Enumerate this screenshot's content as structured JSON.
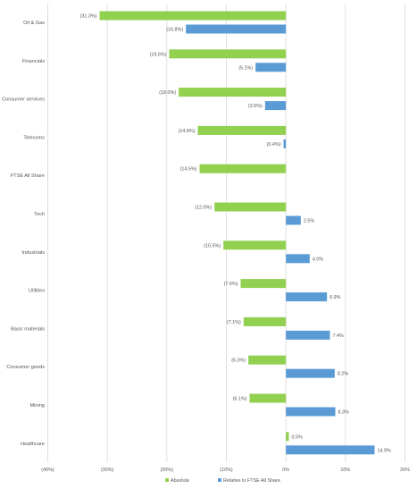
{
  "chart_data": {
    "type": "bar",
    "orientation": "horizontal",
    "categories": [
      "Oil & Gas",
      "Financials",
      "Consumer services",
      "Telecoms",
      "FTSE All Share",
      "Tech",
      "Industrials",
      "Utilities",
      "Basic materials",
      "Consumer goods",
      "Mining",
      "Healthcare"
    ],
    "series": [
      {
        "name": "Absolute",
        "color": "#92d050",
        "values": [
          -31.3,
          -19.6,
          -18.0,
          -14.8,
          -14.5,
          -12.0,
          -10.5,
          -7.6,
          -7.1,
          -6.3,
          -6.1,
          0.5
        ],
        "labels": [
          "(31.3%)",
          "(19.6%)",
          "(18.0%)",
          "(14.8%)",
          "(14.5%)",
          "(12.0%)",
          "(10.5%)",
          "(7.6%)",
          "(7.1%)",
          "(6.3%)",
          "(6.1%)",
          "0.5%"
        ]
      },
      {
        "name": "Relative to FTSE All Share",
        "color": "#5b9bd5",
        "values": [
          -16.8,
          -5.1,
          -3.5,
          -0.4,
          null,
          2.5,
          4.0,
          6.9,
          7.4,
          8.2,
          8.3,
          14.9
        ],
        "labels": [
          "(16.8%)",
          "(5.1%)",
          "(3.5%)",
          "(0.4%)",
          "",
          "2.5%",
          "4.0%",
          "6.9%",
          "7.4%",
          "8.2%",
          "8.3%",
          "14.9%"
        ]
      }
    ],
    "x_ticks": [
      -40,
      -30,
      -20,
      -10,
      0,
      10,
      20
    ],
    "x_tick_labels": [
      "(40%)",
      "(30%)",
      "(20%)",
      "(10%)",
      "0%",
      "10%",
      "20%"
    ],
    "xlim": [
      -40,
      20
    ],
    "grid": true,
    "legend_position": "bottom"
  }
}
